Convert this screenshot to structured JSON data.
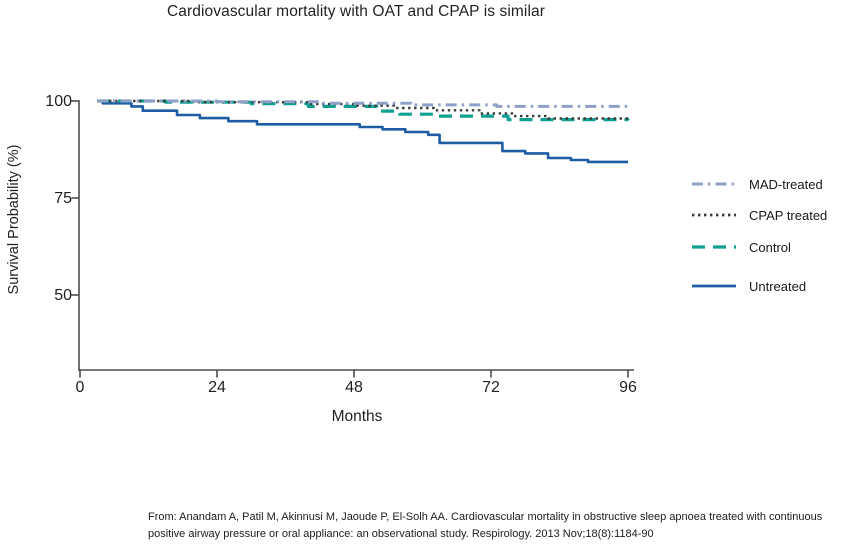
{
  "title": "Cardiovascular mortality with OAT and CPAP is similar",
  "chart_data": {
    "type": "line",
    "subtype": "kaplan-meier-step-survival",
    "title": "Cardiovascular mortality with OAT and CPAP is similar",
    "xlabel": "Months",
    "ylabel": "Survival Probability (%)",
    "x_ticks": [
      0,
      24,
      48,
      72,
      96
    ],
    "y_ticks": [
      100,
      75,
      50
    ],
    "xlim": [
      0,
      96
    ],
    "ylim": [
      31,
      100
    ],
    "grid": "off",
    "legend_position": "right",
    "series": [
      {
        "name": "MAD-treated",
        "color": "#8fa0c8",
        "dash": "dash-dot",
        "points": [
          [
            3,
            100
          ],
          [
            24,
            99.8
          ],
          [
            42,
            99.4
          ],
          [
            58,
            99.0
          ],
          [
            73,
            98.6
          ],
          [
            96,
            98.4
          ]
        ]
      },
      {
        "name": "CPAP treated",
        "color": "#3b3b3b",
        "dash": "dotted",
        "points": [
          [
            3,
            100
          ],
          [
            20,
            99.7
          ],
          [
            40,
            99.2
          ],
          [
            48,
            98.8
          ],
          [
            55,
            98.2
          ],
          [
            62,
            97.6
          ],
          [
            70,
            96.8
          ],
          [
            76,
            96.1
          ],
          [
            82,
            95.5
          ],
          [
            96,
            95.3
          ]
        ]
      },
      {
        "name": "Control",
        "color": "#10a092",
        "dash": "dashed",
        "points": [
          [
            3,
            100
          ],
          [
            15,
            99.7
          ],
          [
            30,
            99.3
          ],
          [
            40,
            98.6
          ],
          [
            52,
            97.4
          ],
          [
            56,
            96.6
          ],
          [
            62,
            96.1
          ],
          [
            75,
            95.2
          ],
          [
            96,
            95.0
          ]
        ]
      },
      {
        "name": "Untreated",
        "color": "#1e5da4",
        "dash": "solid",
        "points": [
          [
            3,
            100
          ],
          [
            4,
            99.4
          ],
          [
            9,
            98.6
          ],
          [
            11,
            97.5
          ],
          [
            17,
            96.4
          ],
          [
            21,
            95.6
          ],
          [
            26,
            94.8
          ],
          [
            31,
            94.0
          ],
          [
            49,
            93.3
          ],
          [
            53,
            92.7
          ],
          [
            57,
            92.0
          ],
          [
            61,
            91.3
          ],
          [
            63,
            89.2
          ],
          [
            74,
            87.1
          ],
          [
            78,
            86.5
          ],
          [
            82,
            85.3
          ],
          [
            86,
            84.8
          ],
          [
            89,
            84.3
          ],
          [
            96,
            84.3
          ]
        ]
      }
    ]
  },
  "axis": {
    "color": "#4d4d4d"
  },
  "citation": {
    "line1": "From: Anandam A, Patil M, Akinnusi M, Jaoude P, El-Solh AA. Cardiovascular mortality in obstructive sleep apnoea treated with continuous",
    "line2": "positive airway pressure or oral appliance: an observational study. Respirology. 2013 Nov;18(8):1184-90"
  }
}
